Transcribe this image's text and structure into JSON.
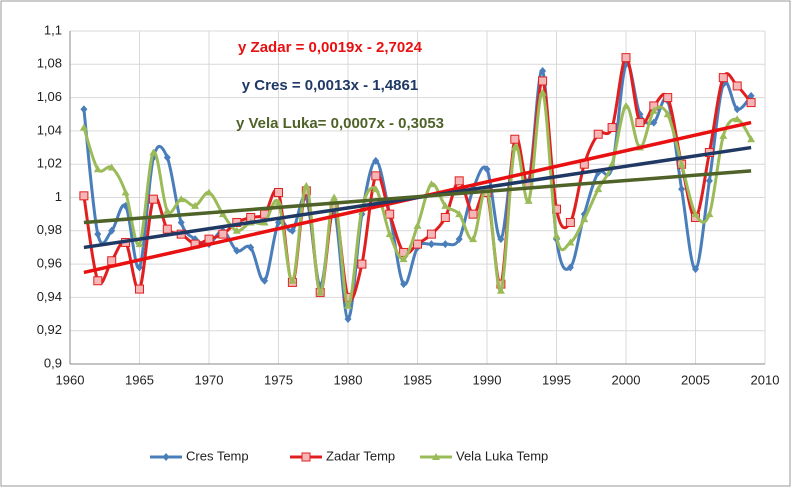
{
  "chart_data": {
    "type": "line",
    "x": [
      1961,
      1962,
      1963,
      1964,
      1965,
      1966,
      1967,
      1968,
      1969,
      1970,
      1971,
      1972,
      1973,
      1974,
      1975,
      1976,
      1977,
      1978,
      1979,
      1980,
      1981,
      1982,
      1983,
      1984,
      1985,
      1986,
      1987,
      1988,
      1989,
      1990,
      1991,
      1992,
      1993,
      1994,
      1995,
      1996,
      1997,
      1998,
      1999,
      2000,
      2001,
      2002,
      2003,
      2004,
      2005,
      2006,
      2007,
      2008,
      2009
    ],
    "series": [
      {
        "name": "Cres Temp",
        "color": "#4a7ebb",
        "marker": "diamond",
        "values": [
          1.053,
          0.978,
          0.98,
          0.995,
          0.958,
          1.024,
          1.024,
          0.985,
          0.975,
          0.972,
          0.98,
          0.968,
          0.97,
          0.95,
          0.985,
          0.98,
          1.0,
          0.947,
          0.992,
          0.927,
          0.99,
          1.022,
          0.99,
          0.948,
          0.97,
          0.972,
          0.972,
          0.975,
          1.005,
          1.017,
          0.975,
          1.03,
          1.01,
          1.076,
          0.975,
          0.958,
          0.99,
          1.015,
          1.018,
          1.08,
          1.05,
          1.045,
          1.058,
          1.005,
          0.957,
          1.01,
          1.068,
          1.053,
          1.061
        ]
      },
      {
        "name": "Zadar Temp",
        "color": "#e02020",
        "marker": "square",
        "values": [
          1.001,
          0.95,
          0.962,
          0.973,
          0.945,
          0.999,
          0.981,
          0.978,
          0.972,
          0.975,
          0.978,
          0.985,
          0.988,
          0.99,
          1.003,
          0.949,
          1.004,
          0.943,
          0.995,
          0.94,
          0.96,
          1.013,
          0.99,
          0.967,
          0.972,
          0.978,
          0.988,
          1.01,
          0.99,
          1.003,
          0.948,
          1.035,
          1.008,
          1.07,
          0.993,
          0.985,
          1.02,
          1.038,
          1.042,
          1.084,
          1.045,
          1.055,
          1.06,
          1.02,
          0.988,
          1.027,
          1.072,
          1.067,
          1.057
        ]
      },
      {
        "name": "Vela Luka Temp",
        "color": "#9bbb59",
        "marker": "triangle",
        "values": [
          1.042,
          1.017,
          1.018,
          1.003,
          0.972,
          1.027,
          0.992,
          0.999,
          0.995,
          1.003,
          0.99,
          0.98,
          0.985,
          0.985,
          0.997,
          0.95,
          1.007,
          0.943,
          1.0,
          0.935,
          0.993,
          1.005,
          0.978,
          0.963,
          0.983,
          1.008,
          0.995,
          0.99,
          0.975,
          1.005,
          0.944,
          1.03,
          0.998,
          1.063,
          0.977,
          0.973,
          0.987,
          1.005,
          1.02,
          1.055,
          1.03,
          1.052,
          1.05,
          1.02,
          0.99,
          0.99,
          1.037,
          1.047,
          1.035
        ]
      }
    ],
    "trendlines": [
      {
        "color": "#e81010",
        "x": [
          1961,
          2009
        ],
        "values": [
          0.955,
          1.045
        ]
      },
      {
        "color": "#1f3864",
        "x": [
          1961,
          2009
        ],
        "values": [
          0.97,
          1.03
        ]
      },
      {
        "color": "#4f6228",
        "x": [
          1961,
          2009
        ],
        "values": [
          0.985,
          1.016
        ]
      }
    ],
    "annotations": [
      {
        "text": "y Zadar = 0,0019x - 2,7024",
        "color": "#e81010"
      },
      {
        "text": "y Cres = 0,0013x - 1,4861",
        "color": "#1f3864"
      },
      {
        "text": "y Vela Luka= 0,0007x - 0,3053",
        "color": "#4f6228"
      }
    ],
    "xlim": [
      1960,
      2010
    ],
    "xticks": [
      1960,
      1965,
      1970,
      1975,
      1980,
      1985,
      1990,
      1995,
      2000,
      2005,
      2010
    ],
    "ylim": [
      0.9,
      1.1
    ],
    "yticks": [
      {
        "value": 0.9,
        "label": "0,9"
      },
      {
        "value": 0.92,
        "label": "0,92"
      },
      {
        "value": 0.94,
        "label": "0,94"
      },
      {
        "value": 0.96,
        "label": "0,96"
      },
      {
        "value": 0.98,
        "label": "0,98"
      },
      1,
      {
        "value": 1.02,
        "label": "1,02"
      },
      {
        "value": 1.04,
        "label": "1,04"
      },
      {
        "value": 1.06,
        "label": "1,06"
      },
      {
        "value": 1.08,
        "label": "1,08"
      },
      {
        "value": 1.1,
        "label": "1,1"
      }
    ],
    "grid": true,
    "legend": "bottom"
  }
}
